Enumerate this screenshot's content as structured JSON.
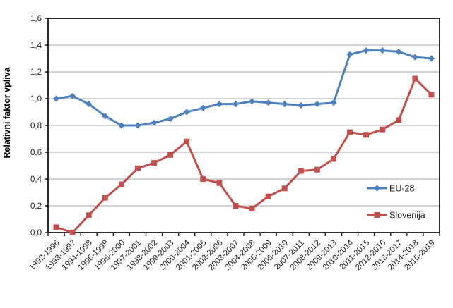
{
  "chart_data": {
    "type": "line",
    "title": "",
    "xlabel": "",
    "ylabel": "Relativni faktor vpliva",
    "ylim": [
      0,
      1.6
    ],
    "ytick_step": 0.2,
    "ytick_labels": [
      "0,0",
      "0,2",
      "0,4",
      "0,6",
      "0,8",
      "1,0",
      "1,2",
      "1,4",
      "1,6"
    ],
    "grid": true,
    "legend_position": "inside-right",
    "categories": [
      "1992-1996",
      "1993-1997",
      "1994-1998",
      "1995-1999",
      "1996-2000",
      "1997-2001",
      "1998-2002",
      "1999-2003",
      "2000-2004",
      "2001-2005",
      "2002-2006",
      "2003-2007",
      "2004-2008",
      "2005-2009",
      "2006-2010",
      "2007-2011",
      "2008-2012",
      "2009-2013",
      "2010-2014",
      "2011-2015",
      "2012-2016",
      "2013-2017",
      "2014-2018",
      "2015-2019"
    ],
    "series": [
      {
        "name": "EU-28",
        "color": "#4F81BD",
        "marker": "diamond",
        "values": [
          1.0,
          1.02,
          0.96,
          0.87,
          0.8,
          0.8,
          0.82,
          0.85,
          0.9,
          0.93,
          0.96,
          0.96,
          0.98,
          0.97,
          0.96,
          0.95,
          0.96,
          0.97,
          1.33,
          1.36,
          1.36,
          1.35,
          1.31,
          1.3
        ]
      },
      {
        "name": "Slovenija",
        "color": "#C0504D",
        "marker": "square",
        "values": [
          0.04,
          0.0,
          0.13,
          0.26,
          0.36,
          0.48,
          0.52,
          0.58,
          0.68,
          0.4,
          0.37,
          0.2,
          0.18,
          0.27,
          0.33,
          0.46,
          0.47,
          0.55,
          0.75,
          0.73,
          0.77,
          0.84,
          1.15,
          1.03
        ]
      }
    ]
  },
  "colors": {
    "background": "#ffffff",
    "gridline": "#A6A6A6",
    "plot_border": "#161616",
    "tick": "#161616",
    "label_text": "#1F1F1F"
  }
}
